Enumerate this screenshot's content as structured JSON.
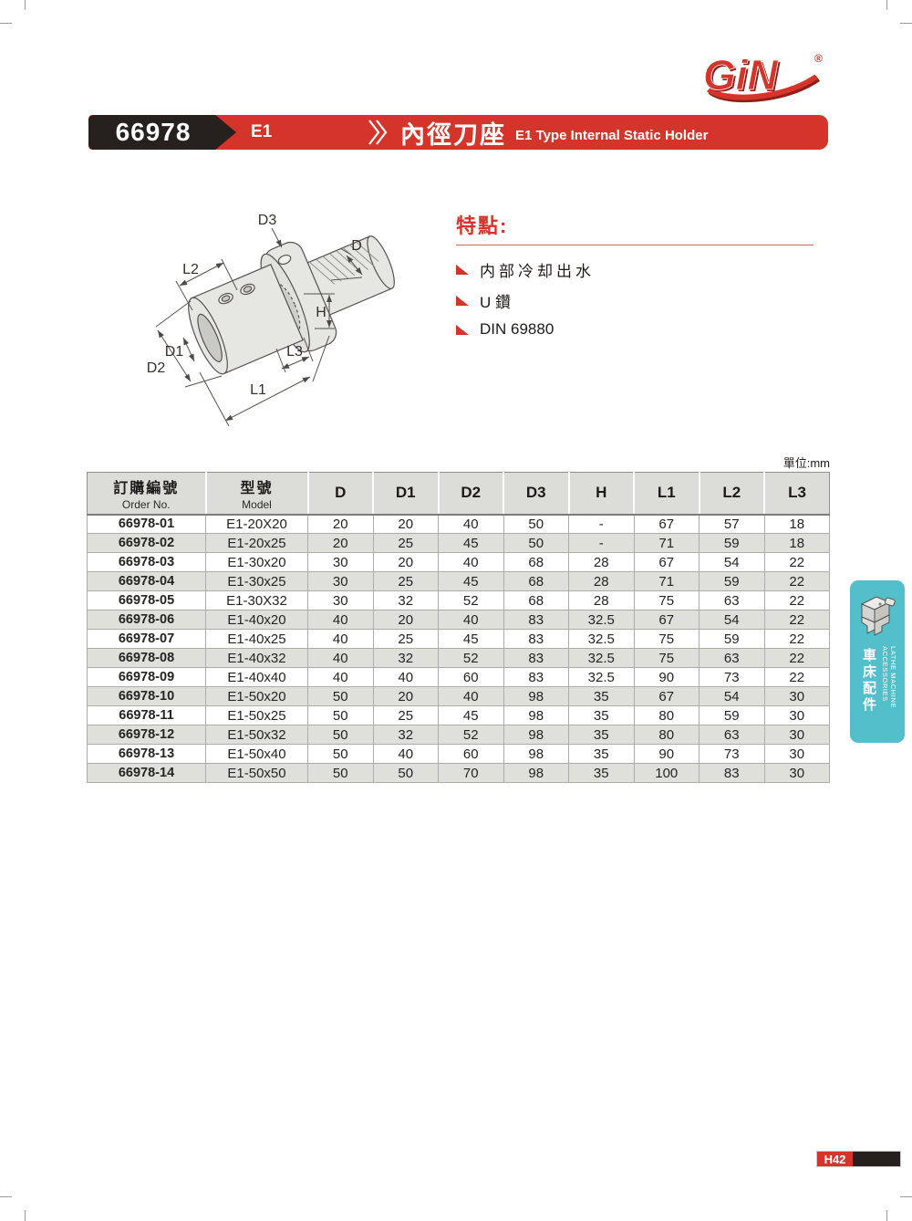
{
  "brand": {
    "name": "GiN",
    "registered": "®",
    "color": "#d5342b"
  },
  "header": {
    "code": "66978",
    "series": "E1",
    "title_zh": "內徑刀座",
    "title_en": "E1 Type Internal Static Holder",
    "bar_color": "#d5342b"
  },
  "features": {
    "heading": "特點:",
    "items": [
      "内部冷却出水",
      "U 鑽",
      "DIN 69880"
    ]
  },
  "diagram": {
    "labels": {
      "d3": "D3",
      "d": "D",
      "l2": "L2",
      "h": "H",
      "d1": "D1",
      "d2": "D2",
      "l3": "L3",
      "l1": "L1"
    }
  },
  "table": {
    "unit_label": "單位:mm",
    "headers": {
      "order_zh": "訂購編號",
      "order_en": "Order No.",
      "model_zh": "型號",
      "model_en": "Model",
      "dims": [
        "D",
        "D1",
        "D2",
        "D3",
        "H",
        "L1",
        "L2",
        "L3"
      ]
    },
    "rows": [
      [
        "66978-01",
        "E1-20X20",
        "20",
        "20",
        "40",
        "50",
        "-",
        "67",
        "57",
        "18"
      ],
      [
        "66978-02",
        "E1-20x25",
        "20",
        "25",
        "45",
        "50",
        "-",
        "71",
        "59",
        "18"
      ],
      [
        "66978-03",
        "E1-30x20",
        "30",
        "20",
        "40",
        "68",
        "28",
        "67",
        "54",
        "22"
      ],
      [
        "66978-04",
        "E1-30x25",
        "30",
        "25",
        "45",
        "68",
        "28",
        "71",
        "59",
        "22"
      ],
      [
        "66978-05",
        "E1-30X32",
        "30",
        "32",
        "52",
        "68",
        "28",
        "75",
        "63",
        "22"
      ],
      [
        "66978-06",
        "E1-40x20",
        "40",
        "20",
        "40",
        "83",
        "32.5",
        "67",
        "54",
        "22"
      ],
      [
        "66978-07",
        "E1-40x25",
        "40",
        "25",
        "45",
        "83",
        "32.5",
        "75",
        "59",
        "22"
      ],
      [
        "66978-08",
        "E1-40x32",
        "40",
        "32",
        "52",
        "83",
        "32.5",
        "75",
        "63",
        "22"
      ],
      [
        "66978-09",
        "E1-40x40",
        "40",
        "40",
        "60",
        "83",
        "32.5",
        "90",
        "73",
        "22"
      ],
      [
        "66978-10",
        "E1-50x20",
        "50",
        "20",
        "40",
        "98",
        "35",
        "67",
        "54",
        "30"
      ],
      [
        "66978-11",
        "E1-50x25",
        "50",
        "25",
        "45",
        "98",
        "35",
        "80",
        "59",
        "30"
      ],
      [
        "66978-12",
        "E1-50x32",
        "50",
        "32",
        "52",
        "98",
        "35",
        "80",
        "63",
        "30"
      ],
      [
        "66978-13",
        "E1-50x40",
        "50",
        "40",
        "60",
        "98",
        "35",
        "90",
        "73",
        "30"
      ],
      [
        "66978-14",
        "E1-50x50",
        "50",
        "50",
        "70",
        "98",
        "35",
        "100",
        "83",
        "30"
      ]
    ]
  },
  "side_tab": {
    "en": "LATHE MACHINE ACCESSORIES",
    "zh": "車床配件",
    "color": "#52bfcb"
  },
  "footer": {
    "page_number": "H42"
  }
}
